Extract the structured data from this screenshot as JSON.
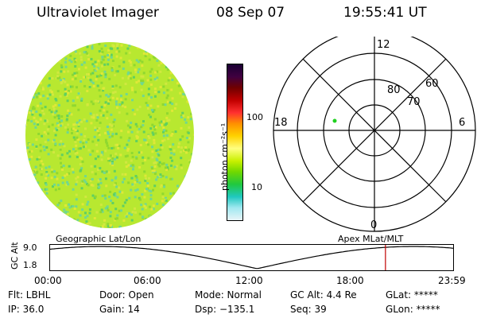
{
  "header": {
    "title": "Ultraviolet Imager",
    "date": "08 Sep 07",
    "time": "19:55:41 UT"
  },
  "colorbar": {
    "unit_label": "photon cm⁻²s⁻¹",
    "ticks": [
      "100",
      "10"
    ],
    "colors": [
      "#1a0033",
      "#400040",
      "#700000",
      "#c00000",
      "#ff3030",
      "#ff9000",
      "#ffd200",
      "#ffff80",
      "#c8f000",
      "#70d800",
      "#20c840",
      "#20c8c0",
      "#a0e8f0",
      "#e8f4f8"
    ]
  },
  "polar": {
    "lat_labels": [
      "80",
      "70",
      "60"
    ],
    "mlt_labels": [
      "12",
      "18",
      "6",
      "0"
    ],
    "dot_color": "#20d020"
  },
  "image": {
    "fill_color": "#b8e830",
    "speckle_colors": [
      "#90d830",
      "#d0e840",
      "#60d060",
      "#e0e838",
      "#70d890"
    ]
  },
  "altitude_panel": {
    "axis_label": "GC Alt",
    "left_title": "Geographic Lat/Lon",
    "right_title": "Apex MLat/MLT",
    "y_ticks": [
      "9.0",
      "1.8"
    ],
    "x_ticks": [
      "00:00",
      "06:00",
      "12:00",
      "18:00",
      "23:59"
    ],
    "marker_hour": 19.93,
    "marker_color": "#c00000"
  },
  "status": {
    "flt": "Flt: LBHL",
    "ip": "IP: 36.0",
    "door": "Door: Open",
    "gain": "Gain: 14",
    "mode": "Mode: Normal",
    "dsp": "Dsp: −135.1",
    "gcalt": "GC Alt: 4.4 Re",
    "seq": "Seq: 39",
    "glat": "GLat: *****",
    "glon": "GLon: *****"
  }
}
